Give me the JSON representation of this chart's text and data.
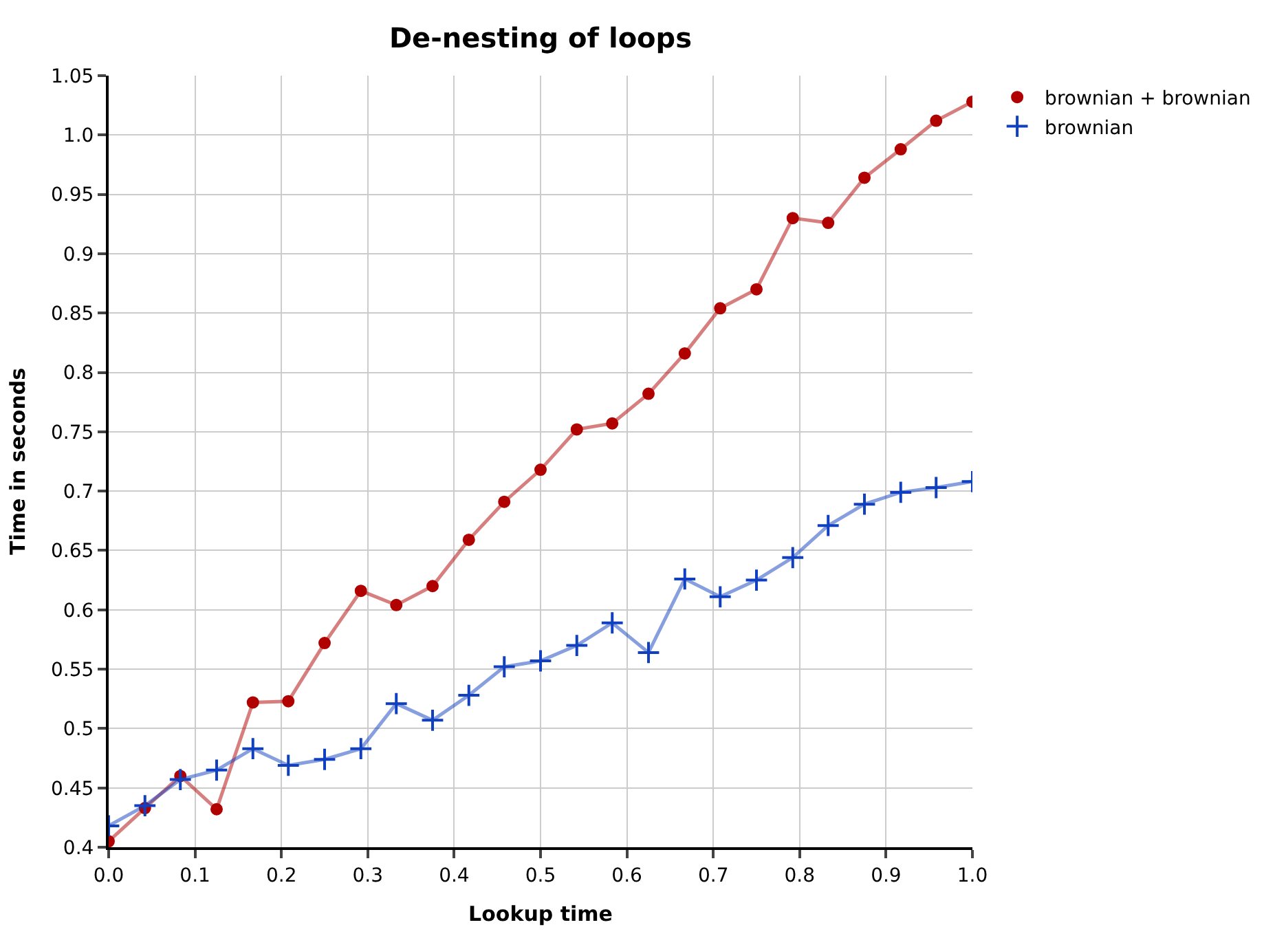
{
  "chart_data": {
    "type": "line",
    "title": "De-nesting of loops",
    "xlabel": "Lookup time",
    "ylabel": "Time in seconds",
    "x": [
      0,
      0.042,
      0.083,
      0.125,
      0.167,
      0.208,
      0.25,
      0.292,
      0.333,
      0.375,
      0.417,
      0.458,
      0.5,
      0.542,
      0.583,
      0.625,
      0.667,
      0.708,
      0.75,
      0.792,
      0.833,
      0.875,
      0.917,
      0.958,
      1.0
    ],
    "series": [
      {
        "name": "brownian + brownian",
        "color": "#b00000",
        "marker": "circle",
        "values": [
          0.405,
          0.433,
          0.46,
          0.432,
          0.522,
          0.523,
          0.572,
          0.616,
          0.604,
          0.62,
          0.659,
          0.691,
          0.718,
          0.752,
          0.757,
          0.782,
          0.816,
          0.854,
          0.87,
          0.93,
          0.926,
          0.964,
          0.988,
          1.012,
          1.028
        ]
      },
      {
        "name": "brownian",
        "color": "#1040c0",
        "marker": "cross",
        "values": [
          0.418,
          0.435,
          0.457,
          0.465,
          0.483,
          0.469,
          0.474,
          0.483,
          0.521,
          0.507,
          0.528,
          0.552,
          0.557,
          0.57,
          0.589,
          0.564,
          0.626,
          0.611,
          0.625,
          0.644,
          0.671,
          0.689,
          0.699,
          0.703,
          0.708
        ]
      }
    ],
    "xlim": [
      0,
      1.0
    ],
    "xticks": [
      {
        "value": 0,
        "label": "0.0"
      },
      0.1,
      0.2,
      0.3,
      0.4,
      0.5,
      0.6,
      0.7,
      0.8,
      0.9,
      {
        "value": 1.0,
        "label": "1.0"
      }
    ],
    "ylim": [
      0.4,
      1.05
    ],
    "yticks": [
      0.4,
      0.45,
      0.5,
      0.55,
      0.6,
      0.65,
      0.7,
      0.75,
      0.8,
      0.85,
      0.9,
      0.95,
      {
        "value": 1.0,
        "label": "1.0"
      },
      1.05
    ],
    "grid": true,
    "legend": "top right",
    "line_style": "solid"
  }
}
